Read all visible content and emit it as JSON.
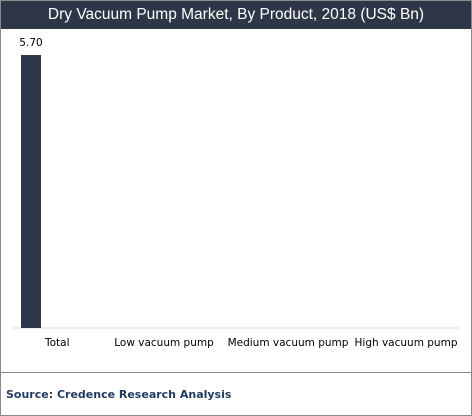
{
  "chart_data": {
    "type": "bar",
    "title": "Dry Vacuum Pump Market, By Product, 2018 (US$ Bn)",
    "categories": [
      "Total",
      "Low vacuum pump",
      "Medium vacuum pump",
      "High vacuum pump"
    ],
    "values": [
      5.7,
      null,
      null,
      null
    ],
    "data_labels": [
      "5.70",
      "",
      "",
      ""
    ],
    "xlabel": "",
    "ylabel": "",
    "ylim": [
      0,
      5.7
    ],
    "grid": false,
    "legend": "none",
    "bar_color": "#2e3747"
  },
  "source": "Source: Credence Research Analysis",
  "colors": {
    "title_background": "#2e3747",
    "title_text": "#ffffff",
    "source_text": "#1f3a5f",
    "frame_border": "#8c8c8c"
  }
}
